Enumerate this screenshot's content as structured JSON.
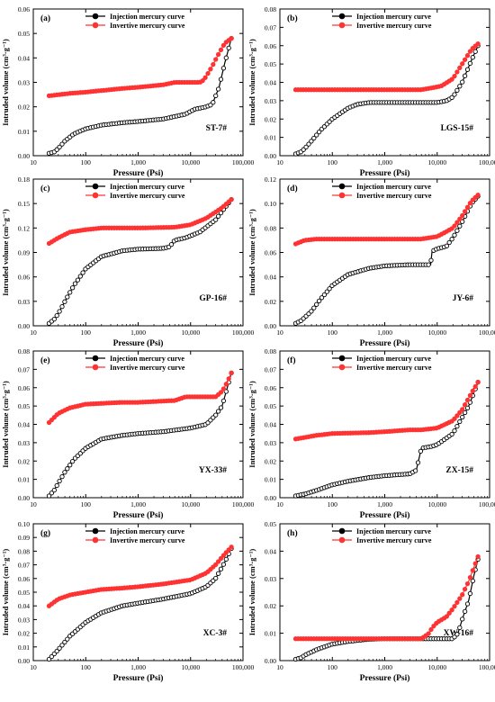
{
  "figure": {
    "shared_x_label": "Pressure (Psi)",
    "shared_y_label_html": "Intruded volume (cm³·g⁻¹)",
    "x_tick_labels": [
      "10",
      "100",
      "1,000",
      "10,000",
      "100,000"
    ],
    "legend_labels": [
      "Injection mercury curve",
      "Invertive mercury curve"
    ],
    "colors": {
      "injection": "#000000",
      "invertive": "#ff3333"
    }
  },
  "chart_data": [
    {
      "type": "line",
      "panel_label": "(a)",
      "sample": "ST-7#",
      "xlabel": "Pressure (Psi)",
      "ylabel": "Intruded volume (cm³·g⁻¹)",
      "x_scale": "log",
      "xlim": [
        10,
        100000
      ],
      "ylim": [
        0,
        0.06
      ],
      "yticks": [
        "0.00",
        "0.01",
        "0.02",
        "0.03",
        "0.04",
        "0.05",
        "0.06"
      ],
      "series": [
        {
          "name": "Injection mercury curve",
          "x": [
            20,
            25,
            30,
            40,
            60,
            100,
            200,
            500,
            1000,
            3000,
            8000,
            12000,
            20000,
            26000,
            35000,
            45000,
            60000
          ],
          "y": [
            0.001,
            0.0015,
            0.003,
            0.006,
            0.009,
            0.011,
            0.0125,
            0.0135,
            0.014,
            0.015,
            0.017,
            0.019,
            0.02,
            0.021,
            0.028,
            0.038,
            0.048
          ]
        },
        {
          "name": "Invertive mercury curve",
          "x": [
            20,
            50,
            100,
            500,
            1000,
            3000,
            5000,
            10000,
            15000,
            18000,
            25000,
            35000,
            45000,
            60000
          ],
          "y": [
            0.0245,
            0.0255,
            0.026,
            0.0275,
            0.028,
            0.029,
            0.03,
            0.03,
            0.03,
            0.031,
            0.036,
            0.042,
            0.046,
            0.048
          ]
        }
      ]
    },
    {
      "type": "line",
      "panel_label": "(b)",
      "sample": "LGS-15#",
      "xlabel": "Pressure (Psi)",
      "ylabel": "Intruded volume (cm³·g⁻¹)",
      "x_scale": "log",
      "xlim": [
        10,
        100000
      ],
      "ylim": [
        0,
        0.08
      ],
      "yticks": [
        "0.00",
        "0.01",
        "0.02",
        "0.03",
        "0.04",
        "0.05",
        "0.06",
        "0.07",
        "0.08"
      ],
      "series": [
        {
          "name": "Injection mercury curve",
          "x": [
            20,
            25,
            30,
            40,
            60,
            100,
            200,
            300,
            500,
            1000,
            3000,
            10000,
            15000,
            20000,
            30000,
            45000,
            60000
          ],
          "y": [
            0.001,
            0.002,
            0.004,
            0.008,
            0.014,
            0.02,
            0.026,
            0.028,
            0.029,
            0.029,
            0.029,
            0.029,
            0.03,
            0.032,
            0.04,
            0.052,
            0.06
          ]
        },
        {
          "name": "Invertive mercury curve",
          "x": [
            20,
            100,
            1000,
            5000,
            8000,
            12000,
            20000,
            30000,
            45000,
            60000
          ],
          "y": [
            0.036,
            0.036,
            0.036,
            0.036,
            0.037,
            0.038,
            0.042,
            0.05,
            0.058,
            0.061
          ]
        }
      ]
    },
    {
      "type": "line",
      "panel_label": "(c)",
      "sample": "GP-16#",
      "xlabel": "Pressure (Psi)",
      "ylabel": "Intruded volume (cm³·g⁻¹)",
      "x_scale": "log",
      "xlim": [
        10,
        100000
      ],
      "ylim": [
        0,
        0.18
      ],
      "yticks": [
        "0.00",
        "0.03",
        "0.06",
        "0.09",
        "0.12",
        "0.15",
        "0.18"
      ],
      "series": [
        {
          "name": "Injection mercury curve",
          "x": [
            20,
            25,
            30,
            40,
            60,
            100,
            200,
            500,
            1000,
            3000,
            4000,
            5000,
            8000,
            15000,
            30000,
            60000
          ],
          "y": [
            0.003,
            0.008,
            0.015,
            0.03,
            0.05,
            0.07,
            0.085,
            0.092,
            0.094,
            0.095,
            0.097,
            0.105,
            0.108,
            0.115,
            0.13,
            0.155
          ]
        },
        {
          "name": "Invertive mercury curve",
          "x": [
            20,
            30,
            50,
            100,
            200,
            500,
            1000,
            5000,
            10000,
            20000,
            40000,
            60000
          ],
          "y": [
            0.101,
            0.108,
            0.115,
            0.118,
            0.12,
            0.12,
            0.12,
            0.121,
            0.124,
            0.132,
            0.145,
            0.155
          ]
        }
      ]
    },
    {
      "type": "line",
      "panel_label": "(d)",
      "sample": "JY-6#",
      "xlabel": "Pressure (Psi)",
      "ylabel": "Intruded volume (cm³·g⁻¹)",
      "x_scale": "log",
      "xlim": [
        10,
        100000
      ],
      "ylim": [
        0,
        0.12
      ],
      "yticks": [
        "0.00",
        "0.02",
        "0.04",
        "0.06",
        "0.08",
        "0.10",
        "0.12"
      ],
      "series": [
        {
          "name": "Injection mercury curve",
          "x": [
            20,
            25,
            30,
            40,
            60,
            100,
            200,
            500,
            1000,
            3000,
            7500,
            8000,
            10000,
            15000,
            20000,
            30000,
            45000,
            60000
          ],
          "y": [
            0.002,
            0.004,
            0.007,
            0.012,
            0.022,
            0.033,
            0.042,
            0.047,
            0.049,
            0.05,
            0.05,
            0.061,
            0.063,
            0.065,
            0.072,
            0.085,
            0.1,
            0.106
          ]
        },
        {
          "name": "Invertive mercury curve",
          "x": [
            20,
            30,
            50,
            100,
            1000,
            5000,
            10000,
            20000,
            30000,
            45000,
            60000
          ],
          "y": [
            0.067,
            0.07,
            0.071,
            0.071,
            0.071,
            0.071,
            0.073,
            0.08,
            0.09,
            0.102,
            0.107
          ]
        }
      ]
    },
    {
      "type": "line",
      "panel_label": "(e)",
      "sample": "YX-33#",
      "xlabel": "Pressure (Psi)",
      "ylabel": "Intruded volume (cm³·g⁻¹)",
      "x_scale": "log",
      "xlim": [
        10,
        100000
      ],
      "ylim": [
        0,
        0.08
      ],
      "yticks": [
        "0.00",
        "0.01",
        "0.02",
        "0.03",
        "0.04",
        "0.05",
        "0.06",
        "0.07",
        "0.08"
      ],
      "series": [
        {
          "name": "Injection mercury curve",
          "x": [
            20,
            25,
            30,
            40,
            60,
            100,
            200,
            500,
            1000,
            3000,
            10000,
            20000,
            30000,
            40000,
            50000,
            60000
          ],
          "y": [
            0.001,
            0.004,
            0.008,
            0.014,
            0.021,
            0.027,
            0.032,
            0.034,
            0.035,
            0.036,
            0.038,
            0.04,
            0.045,
            0.05,
            0.06,
            0.068
          ]
        },
        {
          "name": "Invertive mercury curve",
          "x": [
            20,
            30,
            50,
            100,
            500,
            1000,
            5000,
            8000,
            10000,
            30000,
            40000,
            50000,
            60000
          ],
          "y": [
            0.041,
            0.046,
            0.049,
            0.051,
            0.052,
            0.052,
            0.053,
            0.055,
            0.055,
            0.055,
            0.058,
            0.063,
            0.068
          ]
        }
      ]
    },
    {
      "type": "line",
      "panel_label": "(f)",
      "sample": "ZX-15#",
      "xlabel": "Pressure (Psi)",
      "ylabel": "Intruded volume (cm³·g⁻¹)",
      "x_scale": "log",
      "xlim": [
        10,
        100000
      ],
      "ylim": [
        0,
        0.08
      ],
      "yticks": [
        "0.00",
        "0.01",
        "0.02",
        "0.03",
        "0.04",
        "0.05",
        "0.06",
        "0.07",
        "0.08"
      ],
      "series": [
        {
          "name": "Injection mercury curve",
          "x": [
            20,
            30,
            50,
            100,
            200,
            500,
            1000,
            3000,
            4000,
            5000,
            8000,
            10000,
            20000,
            40000,
            60000
          ],
          "y": [
            0.001,
            0.002,
            0.004,
            0.007,
            0.009,
            0.011,
            0.012,
            0.013,
            0.015,
            0.027,
            0.028,
            0.029,
            0.035,
            0.05,
            0.063
          ]
        },
        {
          "name": "Invertive mercury curve",
          "x": [
            20,
            50,
            100,
            500,
            1000,
            3000,
            5000,
            10000,
            20000,
            30000,
            45000,
            60000
          ],
          "y": [
            0.032,
            0.034,
            0.035,
            0.0355,
            0.036,
            0.037,
            0.037,
            0.038,
            0.042,
            0.048,
            0.057,
            0.063
          ]
        }
      ]
    },
    {
      "type": "line",
      "panel_label": "(g)",
      "sample": "XC-3#",
      "xlabel": "Pressure (Psi)",
      "ylabel": "Intruded volume (cm³·g⁻¹)",
      "x_scale": "log",
      "xlim": [
        10,
        100000
      ],
      "ylim": [
        0,
        0.1
      ],
      "yticks": [
        "0.00",
        "0.01",
        "0.02",
        "0.03",
        "0.04",
        "0.05",
        "0.06",
        "0.07",
        "0.08",
        "0.09",
        "0.10"
      ],
      "series": [
        {
          "name": "Injection mercury curve",
          "x": [
            20,
            30,
            50,
            100,
            200,
            500,
            1000,
            3000,
            10000,
            20000,
            30000,
            45000,
            60000
          ],
          "y": [
            0.001,
            0.008,
            0.018,
            0.028,
            0.035,
            0.04,
            0.042,
            0.045,
            0.049,
            0.054,
            0.06,
            0.072,
            0.082
          ]
        },
        {
          "name": "Invertive mercury curve",
          "x": [
            20,
            30,
            50,
            100,
            200,
            500,
            1000,
            3000,
            10000,
            20000,
            30000,
            45000,
            60000
          ],
          "y": [
            0.04,
            0.045,
            0.048,
            0.05,
            0.052,
            0.053,
            0.054,
            0.056,
            0.059,
            0.064,
            0.07,
            0.078,
            0.083
          ]
        }
      ]
    },
    {
      "type": "line",
      "panel_label": "(h)",
      "sample": "XW-16#",
      "xlabel": "Pressure (Psi)",
      "ylabel": "Intruded volume (cm³·g⁻¹)",
      "x_scale": "log",
      "xlim": [
        10,
        100000
      ],
      "ylim": [
        0,
        0.05
      ],
      "yticks": [
        "0.00",
        "0.01",
        "0.02",
        "0.03",
        "0.04",
        "0.05"
      ],
      "series": [
        {
          "name": "Injection mercury curve",
          "x": [
            20,
            25,
            30,
            50,
            100,
            200,
            500,
            1000,
            5000,
            10000,
            15000,
            20000,
            25000,
            30000,
            40000,
            50000,
            60000
          ],
          "y": [
            0.0005,
            0.001,
            0.002,
            0.004,
            0.006,
            0.007,
            0.0078,
            0.008,
            0.008,
            0.008,
            0.008,
            0.008,
            0.01,
            0.015,
            0.022,
            0.031,
            0.037
          ]
        },
        {
          "name": "Invertive mercury curve",
          "x": [
            20,
            100,
            1000,
            5000,
            7000,
            8000,
            10000,
            15000,
            20000,
            30000,
            40000,
            50000,
            60000
          ],
          "y": [
            0.008,
            0.008,
            0.008,
            0.008,
            0.01,
            0.012,
            0.014,
            0.016,
            0.019,
            0.024,
            0.029,
            0.034,
            0.038
          ]
        }
      ]
    }
  ]
}
